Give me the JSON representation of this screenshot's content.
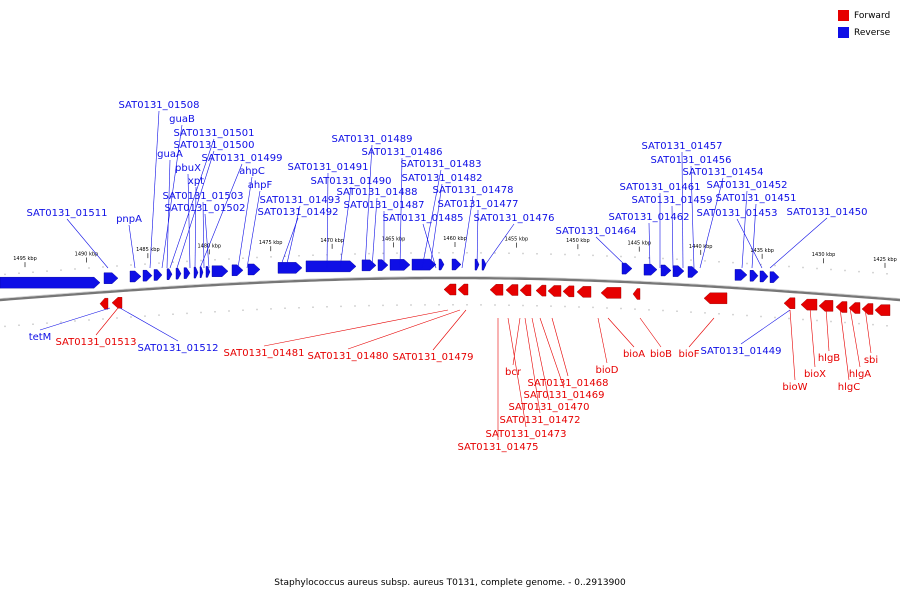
{
  "legend": [
    {
      "label": "Forward",
      "color": "#e60000"
    },
    {
      "label": "Reverse",
      "color": "#0f0fe6"
    }
  ],
  "footer": "Staphylococcus aureus subsp. aureus T0131, complete genome. - 0..2913900",
  "colors": {
    "forward": "#e60000",
    "reverse": "#0f0fe6",
    "backbone": "#777777"
  },
  "ruler": [
    {
      "label": "1495 kbp",
      "kbp": 1495
    },
    {
      "label": "1490 kbp",
      "kbp": 1490
    },
    {
      "label": "1485 kbp",
      "kbp": 1485
    },
    {
      "label": "1480 kbp",
      "kbp": 1480
    },
    {
      "label": "1475 kbp",
      "kbp": 1475
    },
    {
      "label": "1470 kbp",
      "kbp": 1470
    },
    {
      "label": "1465 kbp",
      "kbp": 1465
    },
    {
      "label": "1460 kbp",
      "kbp": 1460
    },
    {
      "label": "1455 kbp",
      "kbp": 1455
    },
    {
      "label": "1450 kbp",
      "kbp": 1450
    },
    {
      "label": "1445 kbp",
      "kbp": 1445
    },
    {
      "label": "1440 kbp",
      "kbp": 1440
    },
    {
      "label": "1435 kbp",
      "kbp": 1435
    },
    {
      "label": "1430 kbp",
      "kbp": 1430
    },
    {
      "label": "1425 kbp",
      "kbp": 1425
    }
  ],
  "reverse_labels": [
    "SAT0131_01508",
    "guaB",
    "SAT0131_01501",
    "SAT0131_01500",
    "guaA",
    "SAT0131_01499",
    "pbuX",
    "ahpC",
    "xpt",
    "ahpF",
    "SAT0131_01503",
    "SAT0131_01502",
    "SAT0131_01511",
    "pnpA",
    "SAT0131_01493",
    "SAT0131_01492",
    "SAT0131_01489",
    "SAT0131_01486",
    "SAT0131_01491",
    "SAT0131_01483",
    "SAT0131_01490",
    "SAT0131_01482",
    "SAT0131_01488",
    "SAT0131_01478",
    "SAT0131_01487",
    "SAT0131_01477",
    "SAT0131_01485",
    "SAT0131_01476",
    "SAT0131_01464",
    "SAT0131_01457",
    "SAT0131_01456",
    "SAT0131_01454",
    "SAT0131_01461",
    "SAT0131_01452",
    "SAT0131_01459",
    "SAT0131_01451",
    "SAT0131_01462",
    "SAT0131_01453",
    "SAT0131_01450",
    "tetM",
    "SAT0131_01512",
    "SAT0131_01449"
  ],
  "forward_labels": [
    "SAT0131_01513",
    "SAT0131_01481",
    "SAT0131_01480",
    "SAT0131_01479",
    "bcr",
    "bioD",
    "bioA",
    "bioB",
    "bioF",
    "SAT0131_01468",
    "SAT0131_01469",
    "SAT0131_01470",
    "SAT0131_01472",
    "SAT0131_01473",
    "SAT0131_01475",
    "hlgB",
    "sbi",
    "bioX",
    "hlgA",
    "bioW",
    "hlgC"
  ]
}
